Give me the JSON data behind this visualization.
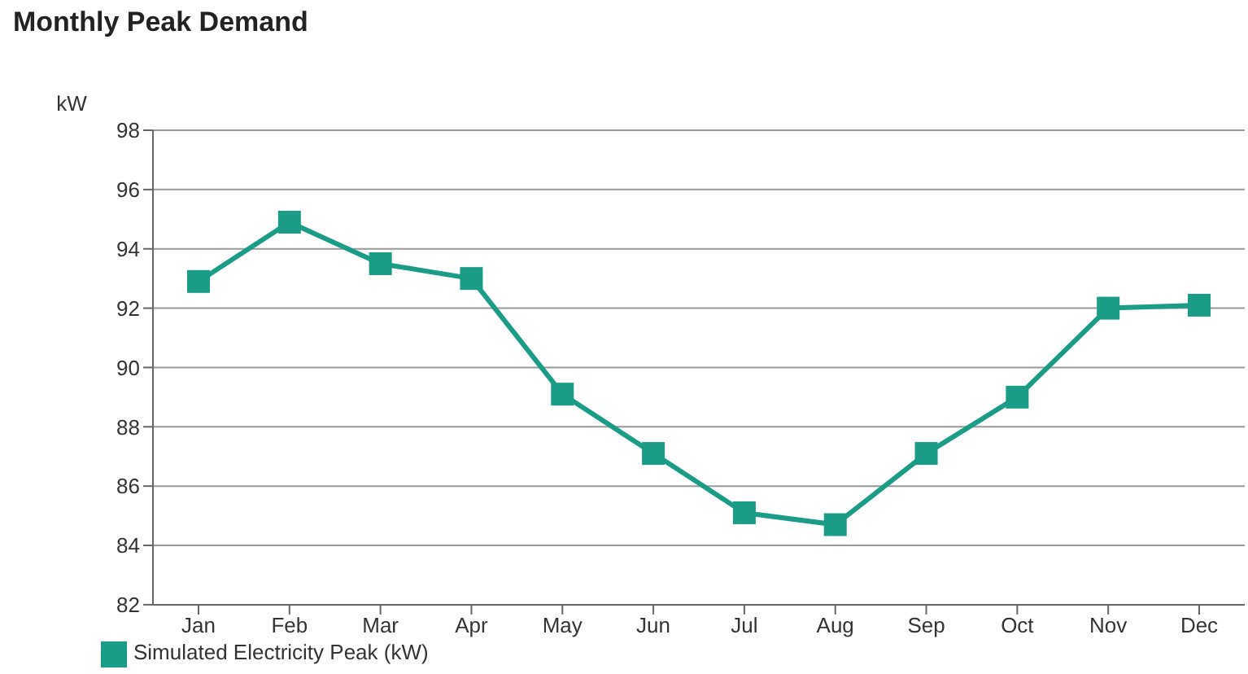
{
  "chart_data": {
    "type": "line",
    "title": "Monthly Peak Demand",
    "ylabel": "kW",
    "categories": [
      "Jan",
      "Feb",
      "Mar",
      "Apr",
      "May",
      "Jun",
      "Jul",
      "Aug",
      "Sep",
      "Oct",
      "Nov",
      "Dec"
    ],
    "series": [
      {
        "name": "Simulated Electricity Peak (kW)",
        "color": "#1a9c87",
        "values": [
          92.9,
          94.9,
          93.5,
          93.0,
          89.1,
          87.1,
          85.1,
          84.7,
          87.1,
          89.0,
          92.0,
          92.1
        ]
      }
    ],
    "ylim": [
      82,
      98
    ],
    "yticks": [
      82,
      84,
      86,
      88,
      90,
      92,
      94,
      96,
      98
    ],
    "grid": "y",
    "legend": "bottom left",
    "marker": "square",
    "line_style": "solid"
  }
}
